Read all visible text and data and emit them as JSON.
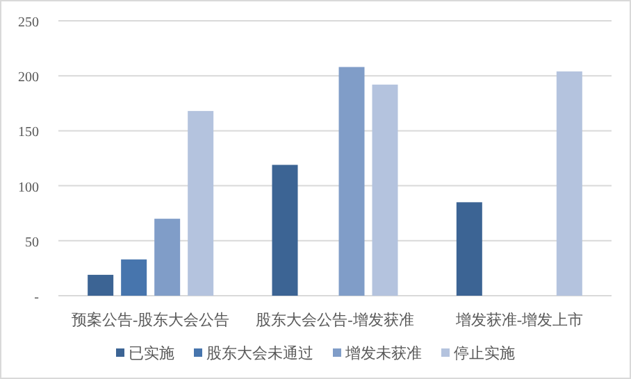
{
  "chart_data": {
    "type": "bar",
    "categories": [
      "预案公告-股东大会公告",
      "股东大会公告-增发获准",
      "增发获准-增发上市"
    ],
    "series": [
      {
        "name": "已实施",
        "color": "#3c6494",
        "values": [
          19,
          119,
          85
        ]
      },
      {
        "name": "股东大会未通过",
        "color": "#4775ad",
        "values": [
          33,
          null,
          null
        ]
      },
      {
        "name": "增发未获准",
        "color": "#809dc8",
        "values": [
          70,
          208,
          null
        ]
      },
      {
        "name": "停止实施",
        "color": "#b4c3de",
        "values": [
          168,
          192,
          204
        ]
      }
    ],
    "ylim": [
      0,
      250
    ],
    "yticks": [
      {
        "value": 0,
        "label": "-"
      },
      50,
      100,
      150,
      200,
      250
    ],
    "grid": "y",
    "legend": "bottom"
  }
}
